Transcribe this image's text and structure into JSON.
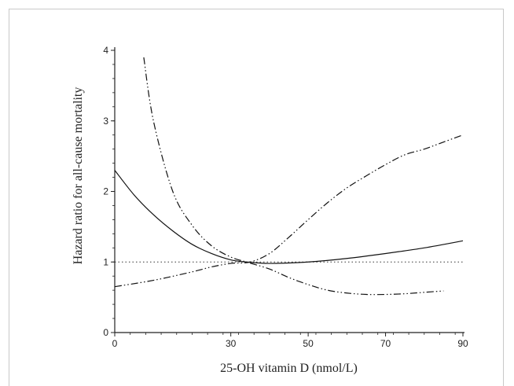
{
  "chart_data": {
    "type": "line",
    "xlabel": "25-OH vitamin D (nmol/L)",
    "ylabel": "Hazard ratio for all-cause mortality",
    "xlim": [
      0,
      90
    ],
    "ylim": [
      0,
      4
    ],
    "xticks": [
      0,
      30,
      50,
      70,
      90
    ],
    "yticks": [
      0,
      1,
      2,
      3,
      4
    ],
    "reference_line": {
      "y": 1,
      "style": "dotted"
    },
    "series": [
      {
        "style": "solid",
        "x": [
          0,
          5,
          10,
          15,
          20,
          25,
          30,
          34,
          40,
          50,
          60,
          70,
          80,
          90
        ],
        "y": [
          2.3,
          1.95,
          1.67,
          1.44,
          1.25,
          1.12,
          1.03,
          1.0,
          0.98,
          1.0,
          1.05,
          1.12,
          1.2,
          1.3
        ]
      },
      {
        "style": "dash-dot-dot",
        "x": [
          7.5,
          10,
          15,
          20,
          25,
          30,
          34,
          40,
          45,
          50,
          55,
          60,
          65,
          70,
          75,
          80,
          85
        ],
        "y": [
          3.9,
          3.0,
          2.0,
          1.52,
          1.23,
          1.07,
          1.0,
          0.9,
          0.78,
          0.68,
          0.6,
          0.56,
          0.54,
          0.54,
          0.55,
          0.57,
          0.59
        ]
      },
      {
        "style": "dash-dot-dot",
        "x": [
          0,
          10,
          20,
          25,
          30,
          35,
          40,
          45,
          50,
          55,
          60,
          65,
          70,
          75,
          80,
          85,
          90
        ],
        "y": [
          0.65,
          0.74,
          0.86,
          0.93,
          0.98,
          1.0,
          1.12,
          1.35,
          1.6,
          1.84,
          2.05,
          2.22,
          2.38,
          2.52,
          2.6,
          2.7,
          2.8
        ]
      }
    ]
  }
}
